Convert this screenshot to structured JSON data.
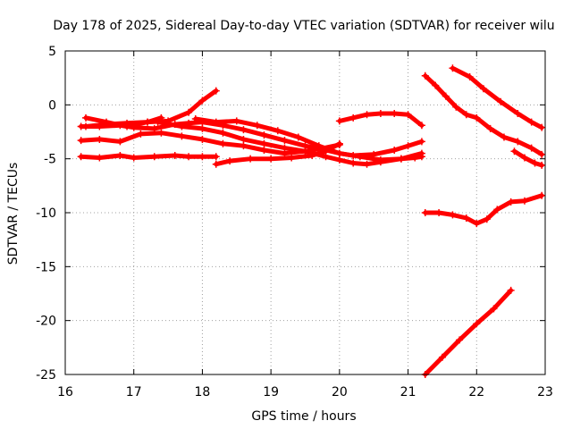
{
  "chart_data": {
    "type": "scatter",
    "title": "Day 178 of 2025, Sidereal Day-to-day VTEC variation (SDTVAR) for receiver wilu",
    "xlabel": "GPS time / hours",
    "ylabel": "SDTVAR / TECUs",
    "xlim": [
      16,
      23
    ],
    "ylim": [
      -25,
      5
    ],
    "xticks": [
      16,
      17,
      18,
      19,
      20,
      21,
      22,
      23
    ],
    "yticks": [
      5,
      0,
      -5,
      -10,
      -15,
      -20,
      -25
    ],
    "grid": true,
    "marker_color": "#ff0000",
    "marker": "plus",
    "series": [
      {
        "x": [
          16.23,
          16.5,
          16.8,
          17.1,
          17.4,
          17.7,
          18.0,
          18.3,
          18.6,
          18.9,
          19.2,
          19.5,
          19.7,
          20.0
        ],
        "y": [
          -3.3,
          -3.2,
          -3.4,
          -2.7,
          -2.6,
          -2.9,
          -3.2,
          -3.6,
          -3.8,
          -4.2,
          -4.5,
          -4.3,
          -4.1,
          -3.7
        ]
      },
      {
        "x": [
          16.23,
          16.5,
          16.8,
          17.0,
          17.3,
          17.6,
          17.8,
          18.0,
          18.2
        ],
        "y": [
          -4.8,
          -4.9,
          -4.7,
          -4.9,
          -4.8,
          -4.7,
          -4.8,
          -4.8,
          -4.8
        ]
      },
      {
        "x": [
          16.3,
          16.6,
          16.9,
          17.2,
          17.5,
          17.8,
          18.0,
          18.2
        ],
        "y": [
          -2.0,
          -1.8,
          -1.7,
          -1.6,
          -1.5,
          -0.7,
          0.4,
          1.3
        ]
      },
      {
        "x": [
          16.23,
          16.5,
          16.8,
          17.0,
          17.3,
          17.6,
          17.8,
          18.0,
          18.3,
          18.6,
          18.9,
          19.2,
          19.5,
          19.8,
          20.0,
          20.2,
          20.5,
          20.8,
          21.0,
          21.2
        ],
        "y": [
          -2.0,
          -2.0,
          -1.9,
          -2.1,
          -2.2,
          -1.8,
          -1.7,
          -1.6,
          -1.9,
          -2.3,
          -2.8,
          -3.3,
          -3.8,
          -4.2,
          -4.5,
          -4.7,
          -4.6,
          -4.2,
          -3.8,
          -3.4
        ]
      },
      {
        "x": [
          17.35,
          17.7,
          18.0,
          18.3,
          18.6,
          18.9,
          19.2,
          19.5,
          19.8,
          20.0,
          20.2,
          20.4,
          20.6,
          20.9,
          21.2
        ],
        "y": [
          -1.6,
          -2.0,
          -2.2,
          -2.6,
          -3.2,
          -3.6,
          -4.0,
          -4.3,
          -4.8,
          -5.1,
          -5.4,
          -5.5,
          -5.3,
          -5.0,
          -4.5
        ]
      },
      {
        "x": [
          16.3,
          16.6,
          16.9,
          17.2,
          17.4
        ],
        "y": [
          -1.2,
          -1.6,
          -2.0,
          -1.6,
          -1.2
        ]
      },
      {
        "x": [
          17.9,
          18.2,
          18.5,
          18.8,
          19.1,
          19.4,
          19.7,
          20.0,
          20.3,
          20.6,
          20.9,
          21.1,
          21.2
        ],
        "y": [
          -1.3,
          -1.6,
          -1.5,
          -1.9,
          -2.4,
          -3.0,
          -3.8,
          -4.5,
          -4.8,
          -5.1,
          -5.0,
          -4.9,
          -4.8
        ]
      },
      {
        "x": [
          18.2,
          18.4,
          18.7,
          19.0,
          19.3,
          19.6,
          19.8,
          20.0
        ],
        "y": [
          -5.5,
          -5.2,
          -5.0,
          -5.0,
          -4.9,
          -4.7,
          -4.3,
          -3.6
        ]
      },
      {
        "x": [
          20.0,
          20.2,
          20.4,
          20.6,
          20.8,
          21.0,
          21.2
        ],
        "y": [
          -1.5,
          -1.2,
          -0.9,
          -0.8,
          -0.8,
          -0.9,
          -1.9
        ]
      },
      {
        "x": [
          21.25,
          21.4,
          21.55,
          21.7,
          21.85,
          22.0,
          22.2,
          22.4,
          22.6,
          22.8,
          22.95
        ],
        "y": [
          2.7,
          1.8,
          0.8,
          -0.2,
          -0.9,
          -1.2,
          -2.2,
          -3.0,
          -3.4,
          -4.0,
          -4.6
        ]
      },
      {
        "x": [
          21.65,
          21.9,
          22.1,
          22.35,
          22.6,
          22.8,
          22.95
        ],
        "y": [
          3.4,
          2.6,
          1.5,
          0.3,
          -0.8,
          -1.6,
          -2.1
        ]
      },
      {
        "x": [
          22.55,
          22.7,
          22.85,
          22.95
        ],
        "y": [
          -4.3,
          -4.9,
          -5.4,
          -5.6
        ]
      },
      {
        "x": [
          21.25,
          21.45,
          21.65,
          21.85,
          22.0,
          22.15,
          22.3,
          22.5,
          22.7,
          22.95
        ],
        "y": [
          -10.0,
          -10.0,
          -10.2,
          -10.5,
          -11.0,
          -10.6,
          -9.7,
          -9.0,
          -8.9,
          -8.4
        ]
      },
      {
        "x": [
          21.25,
          21.5,
          21.75,
          22.0,
          22.25,
          22.5
        ],
        "y": [
          -25.0,
          -23.4,
          -21.8,
          -20.3,
          -18.9,
          -17.2
        ]
      }
    ]
  }
}
